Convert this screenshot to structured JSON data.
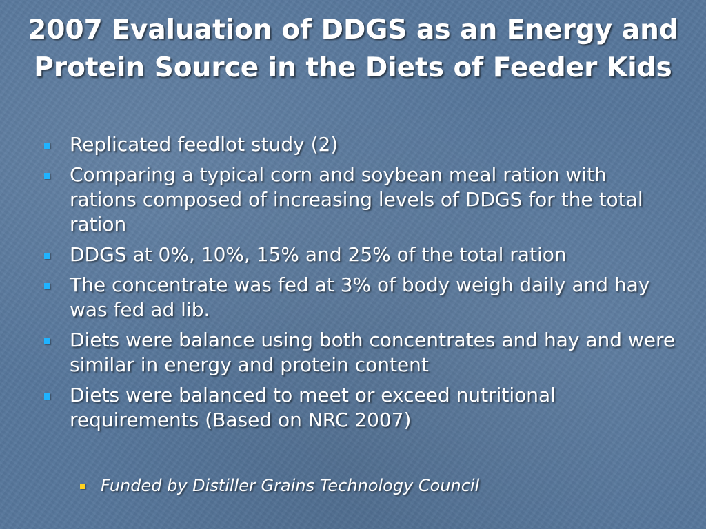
{
  "slide": {
    "title": "2007 Evaluation of DDGS as an Energy and Protein Source in the Diets of Feeder Kids",
    "bullets": [
      "Replicated feedlot study (2)",
      "Comparing a typical corn and soybean meal ration with rations composed of increasing levels of DDGS for the total ration",
      "DDGS at 0%, 10%, 15% and 25% of the total ration",
      "The concentrate was fed at 3% of body weigh daily and hay was fed ad lib.",
      "Diets were balance using both concentrates and hay and were similar in energy and protein content",
      "Diets were balanced to meet or exceed nutritional requirements (Based on NRC 2007)"
    ],
    "footnote": "Funded by Distiller Grains Technology Council"
  },
  "colors": {
    "background": "#57779c",
    "text": "#ffffff",
    "bullet_marker": "#1fb3ff",
    "footnote_marker": "#ffd21f"
  },
  "icons": {
    "bullet": "square-bullet-icon",
    "footnote_bullet": "square-bullet-icon"
  }
}
